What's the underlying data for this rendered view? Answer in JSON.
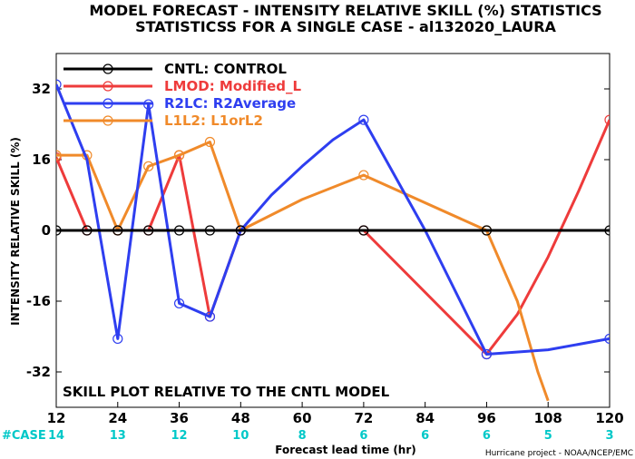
{
  "header": {
    "title_line1": "MODEL FORECAST - INTENSITY RELATIVE SKILL (%) STATISTICS",
    "title_line2": "STATISTICSS FOR A SINGLE CASE - al132020_LAURA"
  },
  "footer": {
    "case_label": "#CASE",
    "credit": "Hurricane project - NOAA/NCEP/EMC"
  },
  "colors": {
    "cntl": "#000000",
    "lmod": "#ee3b3b",
    "r2lc": "#2e3ef0",
    "l1l2": "#f08a2a",
    "case_text": "#00c8c8"
  },
  "chart_data": {
    "type": "line",
    "title": "MODEL FORECAST - INTENSITY RELATIVE SKILL (%) STATISTICS",
    "subtitle": "STATISTICSS FOR A SINGLE CASE - al132020_LAURA",
    "xlabel": "Forecast lead time (hr)",
    "ylabel": "INTENSITY RELATIVE SKILL (%)",
    "xlim": [
      12,
      120
    ],
    "ylim": [
      -40,
      40
    ],
    "x_ticks": [
      "12",
      "24",
      "36",
      "48",
      "60",
      "72",
      "84",
      "96",
      "108",
      "120"
    ],
    "y_ticks": [
      "32",
      "16",
      "0",
      "-16",
      "-32"
    ],
    "case_counts": [
      "14",
      "13",
      "12",
      "10",
      "8",
      "6",
      "6",
      "6",
      "5",
      "3"
    ],
    "annotation": "SKILL PLOT RELATIVE TO THE CNTL MODEL",
    "legend_position": "top-left",
    "grid": false,
    "series": [
      {
        "name": "CNTL: CONTROL",
        "color": "#000000",
        "x": [
          12,
          18,
          24,
          30,
          36,
          42,
          48,
          72,
          96,
          120
        ],
        "y": [
          0,
          0,
          0,
          0,
          0,
          0,
          0,
          0,
          0,
          0
        ],
        "markers_x": [
          12,
          18,
          24,
          30,
          36,
          42,
          48,
          72,
          96,
          120
        ]
      },
      {
        "name": "LMOD: Modified_L",
        "color": "#ee3b3b",
        "x": [
          12,
          18,
          24,
          30,
          36,
          42,
          48,
          72,
          96,
          102,
          108,
          114,
          120
        ],
        "y": [
          16.5,
          0,
          0,
          0,
          17,
          -19.5,
          0,
          0,
          -28,
          -19,
          -6,
          9,
          25
        ],
        "markers_x": [
          12,
          18,
          24,
          30,
          36,
          42,
          48,
          72,
          96,
          120
        ]
      },
      {
        "name": "R2LC: R2Average",
        "color": "#2e3ef0",
        "x": [
          12,
          18,
          24,
          30,
          36,
          42,
          48,
          54,
          60,
          66,
          72,
          84,
          96,
          108,
          120
        ],
        "y": [
          33,
          16,
          -24.5,
          28.5,
          -16.5,
          -19.5,
          0,
          8,
          14.5,
          20.5,
          25,
          0,
          -28,
          -27,
          -24.5
        ],
        "markers_x": [
          12,
          24,
          30,
          36,
          42,
          48,
          72,
          96,
          120
        ]
      },
      {
        "name": "L1L2: L1orL2",
        "color": "#f08a2a",
        "x": [
          12,
          18,
          24,
          30,
          36,
          42,
          48,
          60,
          72,
          96,
          102,
          106,
          108
        ],
        "y": [
          17,
          17,
          0,
          14.5,
          17,
          20,
          0,
          7,
          12.5,
          0,
          -16,
          -32,
          -38.5
        ],
        "markers_x": [
          12,
          18,
          24,
          30,
          36,
          42,
          48,
          72,
          96
        ]
      }
    ]
  }
}
